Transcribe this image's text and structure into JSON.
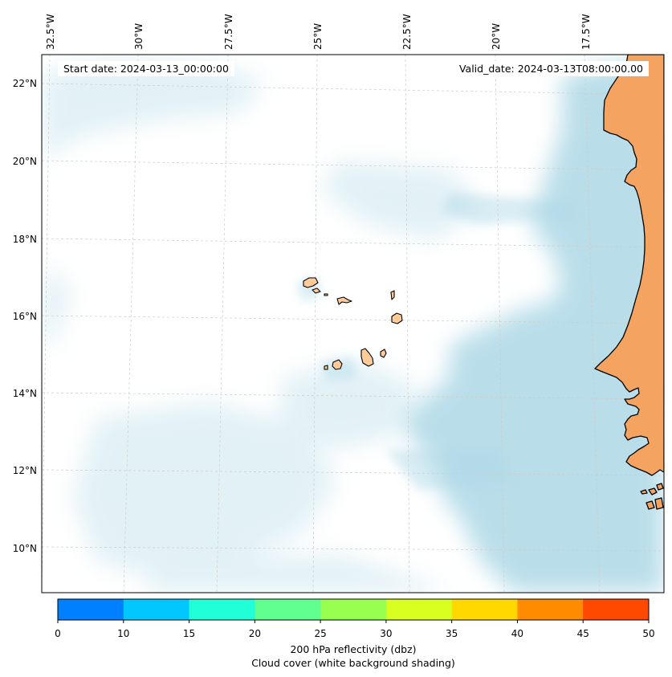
{
  "map": {
    "start_date_label": "Start date: 2024-03-13_00:00:00",
    "valid_date_label": "Valid_date: 2024-03-13T08:00:00.00",
    "longitude_labels": [
      "32.5°W",
      "30°W",
      "27.5°W",
      "25°W",
      "22.5°W",
      "20°W",
      "17.5°W"
    ],
    "latitude_labels": [
      "22°N",
      "20°N",
      "18°N",
      "16°N",
      "14°N",
      "12°N",
      "10°N"
    ],
    "colors": {
      "land": "#f4a460",
      "ocean": "#ffffff",
      "cloud": "#add8e6",
      "coastline": "#000000",
      "gridline": "#cccccc"
    }
  },
  "colorbar": {
    "ticks": [
      "0",
      "10",
      "15",
      "20",
      "25",
      "30",
      "35",
      "40",
      "45",
      "50"
    ],
    "colors": [
      "#0080ff",
      "#00c8ff",
      "#20ffd8",
      "#60ff90",
      "#98ff50",
      "#d8ff20",
      "#ffd800",
      "#ff8c00",
      "#ff4800"
    ],
    "label_line1": "200 hPa reflectivity (dbz)",
    "label_line2": "Cloud cover (white background shading)"
  }
}
